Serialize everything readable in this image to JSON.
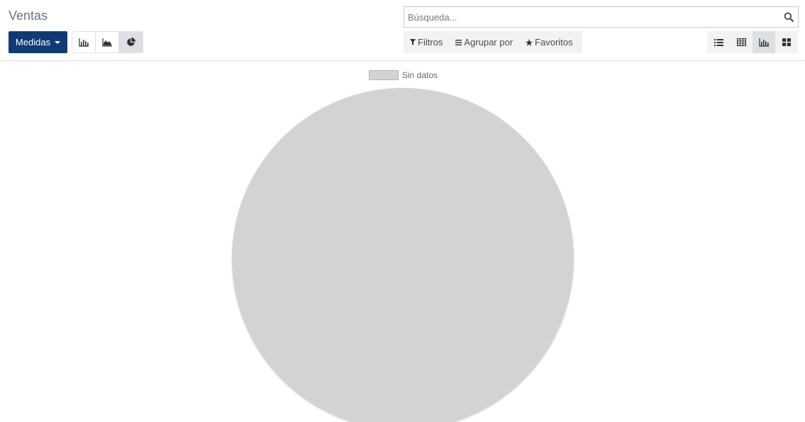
{
  "breadcrumb": {
    "title": "Ventas"
  },
  "toolbar": {
    "measures_label": "Medidas",
    "chart_modes": [
      {
        "name": "bar",
        "icon": "bar-chart-icon",
        "active": false
      },
      {
        "name": "line",
        "icon": "area-chart-icon",
        "active": false
      },
      {
        "name": "pie",
        "icon": "pie-chart-icon",
        "active": true
      }
    ]
  },
  "search": {
    "placeholder": "Búsqueda...",
    "value": ""
  },
  "filters": {
    "filters_label": "Filtros",
    "group_by_label": "Agrupar por",
    "favorites_label": "Favoritos"
  },
  "views": [
    {
      "name": "list",
      "icon": "list-view-icon",
      "active": false
    },
    {
      "name": "pivot",
      "icon": "pivot-table-icon",
      "active": false
    },
    {
      "name": "graph",
      "icon": "graph-view-icon",
      "active": true
    },
    {
      "name": "kanban",
      "icon": "kanban-view-icon",
      "active": false
    }
  ],
  "colors": {
    "accent": "#0f3a74",
    "no_data_slice": "#d3d3d3"
  },
  "chart_data": {
    "type": "pie",
    "categories": [
      "Sin datos"
    ],
    "values": [
      1
    ],
    "legend": [
      "Sin datos"
    ],
    "legend_position": "top"
  }
}
